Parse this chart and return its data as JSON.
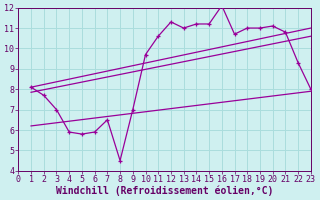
{
  "xlabel": "Windchill (Refroidissement éolien,°C)",
  "ylabel": "",
  "background_color": "#cff0f0",
  "grid_color": "#aadddd",
  "line_color": "#990099",
  "xlim": [
    0,
    23
  ],
  "ylim": [
    4,
    12
  ],
  "xticks": [
    0,
    1,
    2,
    3,
    4,
    5,
    6,
    7,
    8,
    9,
    10,
    11,
    12,
    13,
    14,
    15,
    16,
    17,
    18,
    19,
    20,
    21,
    22,
    23
  ],
  "yticks": [
    4,
    5,
    6,
    7,
    8,
    9,
    10,
    11,
    12
  ],
  "series1_x": [
    1,
    2,
    3,
    4,
    5,
    6,
    7,
    8,
    9,
    10,
    11,
    12,
    13,
    14,
    15,
    16,
    17,
    18,
    19,
    20,
    21,
    22,
    23
  ],
  "series1_y": [
    8.1,
    7.7,
    7.0,
    5.9,
    5.8,
    5.9,
    6.5,
    4.5,
    7.0,
    9.7,
    10.6,
    11.3,
    11.0,
    11.2,
    11.2,
    12.1,
    10.7,
    11.0,
    11.0,
    11.1,
    10.8,
    9.3,
    8.0
  ],
  "trend1_x": [
    1,
    23
  ],
  "trend1_y": [
    8.1,
    11.0
  ],
  "trend2_x": [
    1,
    23
  ],
  "trend2_y": [
    7.85,
    10.6
  ],
  "trend3_x": [
    1,
    23
  ],
  "trend3_y": [
    6.2,
    7.9
  ],
  "font_color": "#660066",
  "tick_fontsize": 6.0,
  "label_fontsize": 7.0
}
